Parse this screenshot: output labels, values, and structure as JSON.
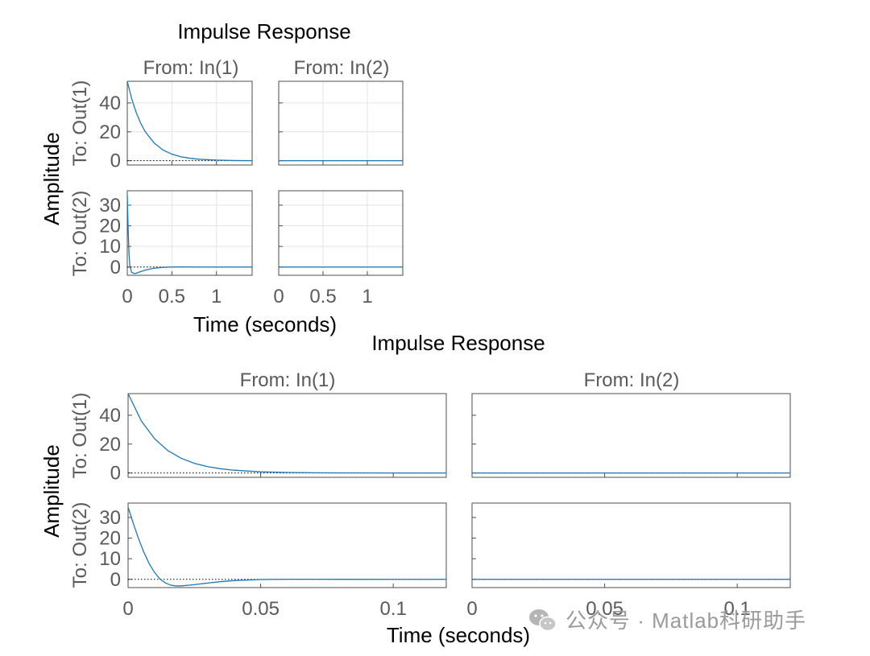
{
  "chart_data": [
    {
      "type": "line",
      "title": "Impulse Response",
      "xlabel": "Time (seconds)",
      "ylabel": "Amplitude",
      "input_labels": [
        "From: In(1)",
        "From: In(2)"
      ],
      "output_labels": [
        "To: Out(1)",
        "To: Out(2)"
      ],
      "xlim": [
        0,
        1.4
      ],
      "xticks": [
        0,
        0.5,
        1
      ],
      "xtick_labels": [
        "0",
        "0.5",
        "1"
      ],
      "grid": true,
      "rows": [
        {
          "ylim": [
            -3,
            55
          ],
          "yticks": [
            0,
            20,
            40
          ],
          "ytick_labels": [
            "0",
            "20",
            "40"
          ],
          "panels": [
            {
              "input": "In(1)",
              "output": "Out(1)",
              "x": [
                0,
                0.05,
                0.1,
                0.15,
                0.2,
                0.3,
                0.4,
                0.5,
                0.6,
                0.7,
                0.8,
                1.0,
                1.2,
                1.4
              ],
              "y": [
                55,
                42.8,
                33.4,
                26.0,
                20.2,
                12.3,
                7.4,
                4.5,
                2.7,
                1.7,
                1.0,
                0.4,
                0.1,
                0
              ]
            },
            {
              "input": "In(2)",
              "output": "Out(1)",
              "x": [
                0,
                1.4
              ],
              "y": [
                0,
                0
              ]
            }
          ]
        },
        {
          "ylim": [
            -4,
            37
          ],
          "yticks": [
            0,
            10,
            20,
            30
          ],
          "ytick_labels": [
            "0",
            "10",
            "20",
            "30"
          ],
          "panels": [
            {
              "input": "In(1)",
              "output": "Out(2)",
              "x": [
                0,
                0.01,
                0.02,
                0.03,
                0.05,
                0.08,
                0.1,
                0.15,
                0.2,
                0.3,
                0.4,
                0.5,
                0.6,
                0.8,
                1.0,
                1.4
              ],
              "y": [
                35,
                18,
                6,
                0,
                -2.6,
                -3.2,
                -3.0,
                -2.2,
                -1.5,
                -0.6,
                -0.2,
                0,
                0.1,
                0,
                0,
                0
              ]
            },
            {
              "input": "In(2)",
              "output": "Out(2)",
              "x": [
                0,
                1.4
              ],
              "y": [
                0,
                0
              ]
            }
          ]
        }
      ]
    },
    {
      "type": "line",
      "title": "Impulse Response",
      "xlabel": "Time (seconds)",
      "ylabel": "Amplitude",
      "input_labels": [
        "From: In(1)",
        "From: In(2)"
      ],
      "output_labels": [
        "To: Out(1)",
        "To: Out(2)"
      ],
      "xlim": [
        0,
        0.12
      ],
      "xticks": [
        0,
        0.05,
        0.1
      ],
      "xtick_labels": [
        "0",
        "0.05",
        "0.1"
      ],
      "grid": false,
      "rows": [
        {
          "ylim": [
            -3,
            55
          ],
          "yticks": [
            0,
            20,
            40
          ],
          "ytick_labels": [
            "0",
            "20",
            "40"
          ],
          "panels": [
            {
              "input": "In(1)",
              "output": "Out(1)",
              "x": [
                0,
                0.005,
                0.01,
                0.015,
                0.02,
                0.025,
                0.03,
                0.035,
                0.04,
                0.05,
                0.06,
                0.07,
                0.08,
                0.1,
                0.12
              ],
              "y": [
                55,
                36,
                23.7,
                15.5,
                10.2,
                6.7,
                4.4,
                2.9,
                1.9,
                0.8,
                0.35,
                0.15,
                0.06,
                0.01,
                0
              ]
            },
            {
              "input": "In(2)",
              "output": "Out(1)",
              "x": [
                0,
                0.12
              ],
              "y": [
                0,
                0
              ]
            }
          ]
        },
        {
          "ylim": [
            -4,
            37
          ],
          "yticks": [
            0,
            10,
            20,
            30
          ],
          "ytick_labels": [
            "0",
            "10",
            "20",
            "30"
          ],
          "panels": [
            {
              "input": "In(1)",
              "output": "Out(2)",
              "x": [
                0,
                0.002,
                0.004,
                0.006,
                0.008,
                0.01,
                0.012,
                0.014,
                0.016,
                0.018,
                0.02,
                0.025,
                0.03,
                0.035,
                0.04,
                0.05,
                0.06,
                0.07,
                0.08,
                0.1,
                0.12
              ],
              "y": [
                35,
                27,
                19.5,
                13,
                7.5,
                3.3,
                0.2,
                -1.7,
                -2.8,
                -3.2,
                -3.2,
                -2.6,
                -1.8,
                -1.1,
                -0.6,
                -0.1,
                0.05,
                0.05,
                0.02,
                0,
                0
              ]
            },
            {
              "input": "In(2)",
              "output": "Out(2)",
              "x": [
                0,
                0.12
              ],
              "y": [
                0,
                0
              ]
            }
          ]
        }
      ]
    }
  ],
  "colors": {
    "line": "#1f77b4",
    "axes": "#4d4d4d",
    "grid": "#e3e3e3",
    "zero_line": "#000000",
    "tick_text": "#5a5a5a"
  },
  "watermark": {
    "icon": "wechat-icon",
    "text": "公众号 · Matlab科研助手"
  }
}
